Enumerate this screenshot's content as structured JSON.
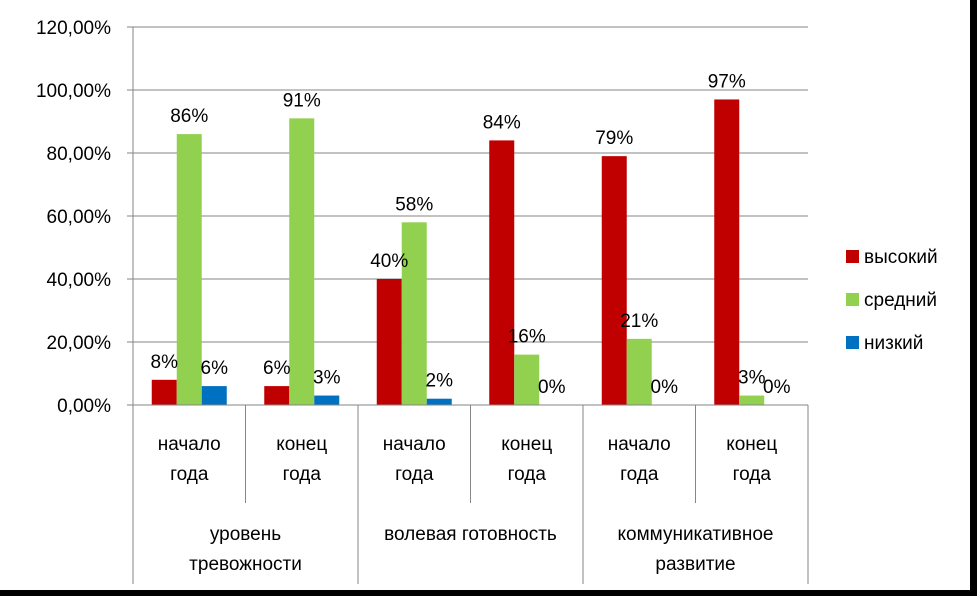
{
  "chart_data": {
    "type": "bar",
    "groups": [
      {
        "label_lines": [
          "уровень",
          "тревожности"
        ],
        "categories": [
          [
            "начало",
            "года"
          ],
          [
            "конец",
            "года"
          ]
        ]
      },
      {
        "label_lines": [
          "волевая готовность"
        ],
        "categories": [
          [
            "начало",
            "года"
          ],
          [
            "конец",
            "года"
          ]
        ]
      },
      {
        "label_lines": [
          "коммуникативное",
          "развитие"
        ],
        "categories": [
          [
            "начало",
            "года"
          ],
          [
            "конец",
            "года"
          ]
        ]
      }
    ],
    "series": [
      {
        "name": "высокий",
        "color": "#C00000",
        "values": [
          8,
          6,
          40,
          84,
          79,
          97
        ],
        "labels": [
          "8%",
          "6%",
          "40%",
          "84%",
          "79%",
          "97%"
        ]
      },
      {
        "name": "средний",
        "color": "#92D050",
        "values": [
          86,
          91,
          58,
          16,
          21,
          3
        ],
        "labels": [
          "86%",
          "91%",
          "58%",
          "16%",
          "21%",
          "3%"
        ]
      },
      {
        "name": "низкий",
        "color": "#0070C0",
        "values": [
          6,
          3,
          2,
          0,
          0,
          0
        ],
        "labels": [
          "6%",
          "3%",
          "2%",
          "0%",
          "0%",
          "0%"
        ]
      }
    ],
    "y_ticks": [
      "0,00%",
      "20,00%",
      "40,00%",
      "60,00%",
      "80,00%",
      "100,00%",
      "120,00%"
    ],
    "ylim": [
      0,
      120
    ],
    "grid": true,
    "legend_position": "right"
  }
}
